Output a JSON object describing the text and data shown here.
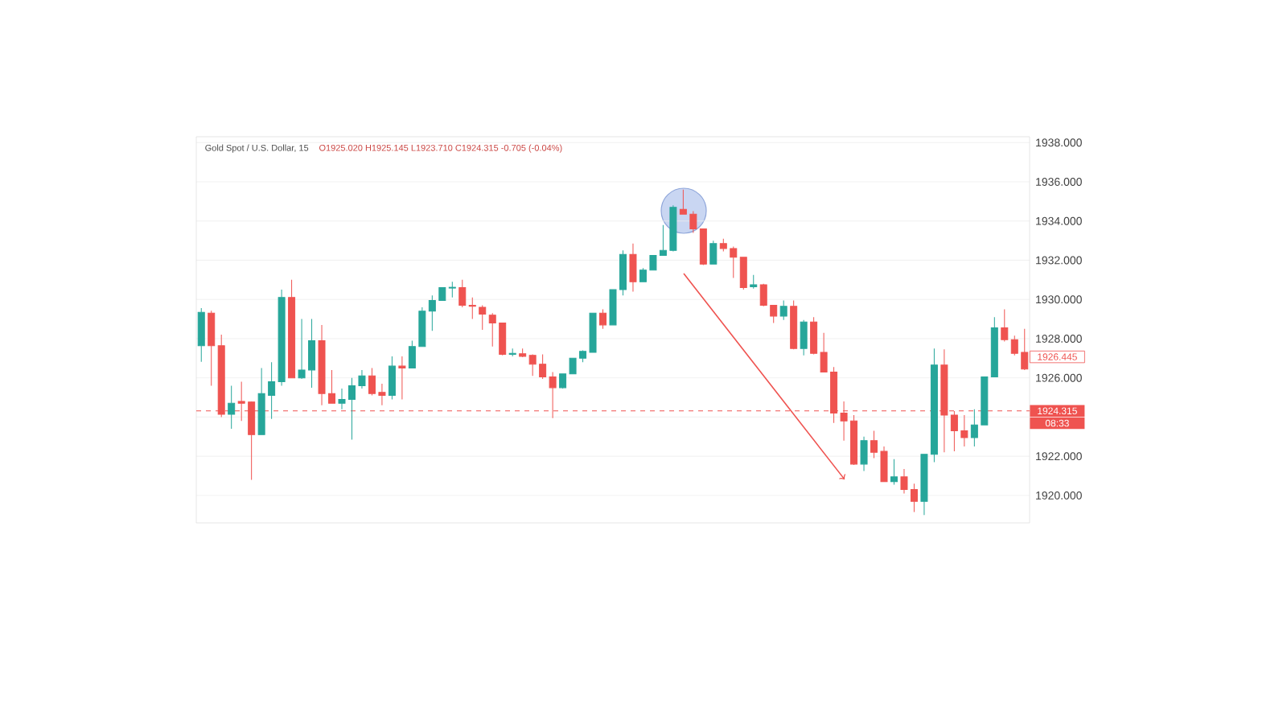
{
  "chart_data": {
    "type": "candlestick",
    "title": "Gold Spot / U.S. Dollar, 15",
    "subtitle": "O1925.020 H1925.145 L1923.710 C1924.315 -0.705 (-0.04%)",
    "categories": [
      null,
      null,
      null,
      null,
      null,
      null,
      null,
      null,
      null,
      null,
      null,
      null,
      null,
      null,
      null,
      null,
      null,
      null,
      null,
      null,
      null,
      null,
      null,
      null,
      null,
      null,
      null,
      null,
      null,
      null,
      null,
      null,
      null,
      null,
      null,
      null,
      null,
      null,
      null,
      null,
      null,
      null,
      null,
      null,
      null,
      null,
      null,
      null,
      null,
      null,
      null,
      null,
      null,
      null,
      null,
      null,
      null,
      null,
      null,
      null,
      null,
      null,
      null,
      null,
      null,
      null,
      null,
      null,
      null,
      null,
      null,
      null,
      null,
      null,
      null,
      null,
      null,
      null,
      null,
      null,
      null,
      null,
      null
    ],
    "ohlc": [
      [
        1927.64,
        1929.56,
        1926.82,
        1929.34
      ],
      [
        1929.3,
        1929.42,
        1925.6,
        1927.64
      ],
      [
        1927.64,
        1928.2,
        1924.0,
        1924.14
      ],
      [
        1924.14,
        1925.6,
        1923.4,
        1924.7
      ],
      [
        1924.8,
        1925.8,
        1923.8,
        1924.7
      ],
      [
        1924.77,
        1924.8,
        1920.8,
        1923.1
      ],
      [
        1923.1,
        1926.5,
        1923.1,
        1925.2
      ],
      [
        1925.1,
        1926.8,
        1923.9,
        1925.8
      ],
      [
        1925.8,
        1930.5,
        1925.6,
        1930.1
      ],
      [
        1930.1,
        1931.0,
        1926.0,
        1926.0
      ],
      [
        1926.0,
        1929.0,
        1925.95,
        1926.4
      ],
      [
        1926.4,
        1929.0,
        1925.5,
        1927.9
      ],
      [
        1927.9,
        1928.7,
        1924.6,
        1925.2
      ],
      [
        1925.2,
        1926.4,
        1924.7,
        1924.7
      ],
      [
        1924.7,
        1925.45,
        1924.4,
        1924.9
      ],
      [
        1924.9,
        1926.0,
        1922.85,
        1925.6
      ],
      [
        1925.6,
        1926.4,
        1925.45,
        1926.1
      ],
      [
        1926.1,
        1926.5,
        1925.1,
        1925.2
      ],
      [
        1925.26,
        1925.7,
        1924.6,
        1925.1
      ],
      [
        1925.1,
        1927.1,
        1924.9,
        1926.6
      ],
      [
        1926.6,
        1927.1,
        1924.9,
        1926.5
      ],
      [
        1926.5,
        1927.9,
        1926.5,
        1927.6
      ],
      [
        1927.6,
        1929.6,
        1927.6,
        1929.4
      ],
      [
        1929.4,
        1930.2,
        1928.4,
        1929.95
      ],
      [
        1929.95,
        1930.6,
        1929.95,
        1930.6
      ],
      [
        1930.58,
        1930.9,
        1930.1,
        1930.62
      ],
      [
        1930.6,
        1931.0,
        1929.6,
        1929.7
      ],
      [
        1929.7,
        1930.1,
        1929.0,
        1929.65
      ],
      [
        1929.6,
        1929.7,
        1928.45,
        1929.25
      ],
      [
        1929.2,
        1929.3,
        1927.6,
        1928.8
      ],
      [
        1928.8,
        1928.8,
        1927.15,
        1927.2
      ],
      [
        1927.2,
        1927.5,
        1927.1,
        1927.25
      ],
      [
        1927.23,
        1927.5,
        1927.05,
        1927.1
      ],
      [
        1927.15,
        1927.2,
        1926.1,
        1926.7
      ],
      [
        1926.7,
        1927.2,
        1925.95,
        1926.05
      ],
      [
        1926.05,
        1926.3,
        1923.95,
        1925.5
      ],
      [
        1925.5,
        1926.2,
        1925.45,
        1926.2
      ],
      [
        1926.2,
        1927.0,
        1926.2,
        1927.0
      ],
      [
        1927.0,
        1927.4,
        1926.8,
        1927.35
      ],
      [
        1927.3,
        1929.3,
        1927.3,
        1929.3
      ],
      [
        1929.3,
        1929.5,
        1928.5,
        1928.7
      ],
      [
        1928.7,
        1930.5,
        1928.7,
        1930.5
      ],
      [
        1930.5,
        1932.5,
        1930.2,
        1932.3
      ],
      [
        1932.3,
        1932.85,
        1930.4,
        1930.9
      ],
      [
        1930.9,
        1931.6,
        1930.9,
        1931.5
      ],
      [
        1931.5,
        1932.25,
        1931.5,
        1932.25
      ],
      [
        1932.25,
        1933.8,
        1932.25,
        1932.5
      ],
      [
        1932.5,
        1934.8,
        1932.45,
        1934.7
      ],
      [
        1934.6,
        1935.6,
        1934.35,
        1934.35
      ],
      [
        1934.35,
        1934.5,
        1933.4,
        1933.6
      ],
      [
        1933.6,
        1933.6,
        1931.75,
        1931.8
      ],
      [
        1931.8,
        1933.0,
        1931.8,
        1932.85
      ],
      [
        1932.85,
        1933.1,
        1932.45,
        1932.6
      ],
      [
        1932.6,
        1932.7,
        1931.1,
        1932.15
      ],
      [
        1932.15,
        1932.15,
        1930.5,
        1930.6
      ],
      [
        1930.65,
        1931.25,
        1930.55,
        1930.75
      ],
      [
        1930.75,
        1930.8,
        1929.65,
        1929.7
      ],
      [
        1929.7,
        1929.7,
        1928.8,
        1929.15
      ],
      [
        1929.15,
        1929.95,
        1928.95,
        1929.65
      ],
      [
        1929.65,
        1929.95,
        1927.45,
        1927.5
      ],
      [
        1927.5,
        1928.95,
        1927.15,
        1928.85
      ],
      [
        1928.85,
        1929.1,
        1927.2,
        1927.25
      ],
      [
        1927.3,
        1928.3,
        1926.3,
        1926.3
      ],
      [
        1926.3,
        1926.55,
        1923.7,
        1924.2
      ],
      [
        1924.2,
        1924.8,
        1922.8,
        1923.8
      ],
      [
        1923.8,
        1924.1,
        1921.55,
        1921.6
      ],
      [
        1921.6,
        1923.0,
        1921.25,
        1922.8
      ],
      [
        1922.8,
        1923.3,
        1921.9,
        1922.2
      ],
      [
        1922.25,
        1922.5,
        1920.7,
        1920.7
      ],
      [
        1920.7,
        1921.85,
        1920.55,
        1920.95
      ],
      [
        1920.95,
        1921.35,
        1920.1,
        1920.3
      ],
      [
        1920.3,
        1920.6,
        1919.15,
        1919.7
      ],
      [
        1919.7,
        1922.1,
        1919.0,
        1922.1
      ],
      [
        1922.1,
        1927.5,
        1921.7,
        1926.65
      ],
      [
        1926.65,
        1927.45,
        1922.2,
        1924.1
      ],
      [
        1924.1,
        1924.3,
        1922.25,
        1923.3
      ],
      [
        1923.3,
        1924.1,
        1922.5,
        1922.95
      ],
      [
        1922.95,
        1924.4,
        1922.5,
        1923.6
      ],
      [
        1923.6,
        1926.05,
        1923.6,
        1926.05
      ],
      [
        1926.05,
        1929.1,
        1926.05,
        1928.55
      ],
      [
        1928.55,
        1929.5,
        1927.85,
        1927.95
      ],
      [
        1927.95,
        1928.15,
        1927.15,
        1927.25
      ],
      [
        1927.3,
        1928.5,
        1926.4,
        1926.45
      ]
    ],
    "colors": [
      "#26a69a",
      "#ef5350",
      "#ef5350",
      "#26a69a",
      "#ef5350",
      "#ef5350",
      "#26a69a",
      "#26a69a",
      "#26a69a",
      "#ef5350",
      "#26a69a",
      "#26a69a",
      "#ef5350",
      "#ef5350",
      "#26a69a",
      "#26a69a",
      "#26a69a",
      "#ef5350",
      "#ef5350",
      "#26a69a",
      "#ef5350",
      "#26a69a",
      "#26a69a",
      "#26a69a",
      "#26a69a",
      "#26a69a",
      "#ef5350",
      "#ef5350",
      "#ef5350",
      "#ef5350",
      "#ef5350",
      "#26a69a",
      "#ef5350",
      "#ef5350",
      "#ef5350",
      "#ef5350",
      "#26a69a",
      "#26a69a",
      "#26a69a",
      "#26a69a",
      "#ef5350",
      "#26a69a",
      "#26a69a",
      "#ef5350",
      "#26a69a",
      "#26a69a",
      "#26a69a",
      "#26a69a",
      "#ef5350",
      "#ef5350",
      "#ef5350",
      "#26a69a",
      "#ef5350",
      "#ef5350",
      "#ef5350",
      "#26a69a",
      "#ef5350",
      "#ef5350",
      "#26a69a",
      "#ef5350",
      "#26a69a",
      "#ef5350",
      "#ef5350",
      "#ef5350",
      "#ef5350",
      "#ef5350",
      "#26a69a",
      "#ef5350",
      "#ef5350",
      "#26a69a",
      "#ef5350",
      "#ef5350",
      "#26a69a",
      "#26a69a",
      "#ef5350",
      "#ef5350",
      "#ef5350",
      "#26a69a",
      "#26a69a",
      "#26a69a",
      "#ef5350",
      "#ef5350",
      "#ef5350"
    ],
    "ylim": [
      1918.6,
      1938.3
    ],
    "yticks": [
      {
        "value": 1920,
        "label": "1920.000"
      },
      {
        "value": 1922,
        "label": "1922.000"
      },
      {
        "value": 1924,
        "label": null
      },
      {
        "value": 1926,
        "label": "1926.000"
      },
      {
        "value": 1928,
        "label": "1928.000"
      },
      {
        "value": 1930,
        "label": "1930.000"
      },
      {
        "value": 1932,
        "label": "1932.000"
      },
      {
        "value": 1934,
        "label": "1934.000"
      },
      {
        "value": 1936,
        "label": "1936.000"
      },
      {
        "value": 1938,
        "label": "1938.000"
      }
    ],
    "tick_labels": "y",
    "grid": "y",
    "ref_lines": [
      {
        "axis": "y",
        "value": 1924.315,
        "label": "1924.315",
        "color": "#ef5350",
        "line_style": "dashed"
      }
    ],
    "annotations": [
      "08:33",
      "1926.445"
    ]
  }
}
